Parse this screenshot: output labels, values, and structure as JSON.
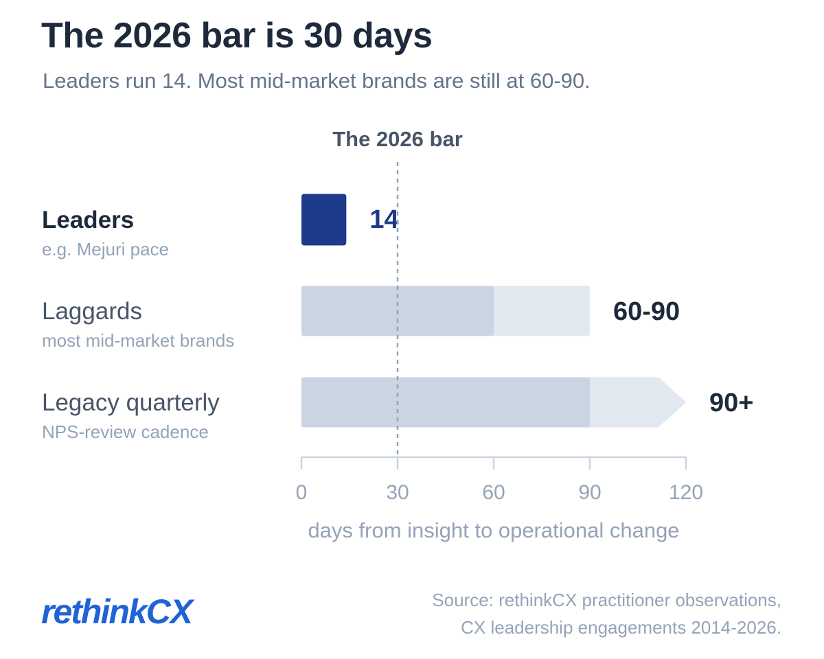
{
  "header": {
    "title": "The 2026 bar is 30 days",
    "subtitle": "Leaders run 14. Most mid-market brands are still at 60-90."
  },
  "chart_data": {
    "type": "bar",
    "orientation": "horizontal",
    "xlim": [
      0,
      120
    ],
    "x_ticks": [
      0,
      30,
      60,
      90,
      120
    ],
    "xlabel": "days from insight to operational change",
    "reference_line": {
      "value": 30,
      "label": "The 2026 bar"
    },
    "categories": [
      {
        "label": "Leaders",
        "sublabel": "e.g. Mejuri pace",
        "value_label": "14",
        "start": 0,
        "core_end": 14,
        "extended_end": 14,
        "open_ended": false,
        "highlight": true
      },
      {
        "label": "Laggards",
        "sublabel": "most mid-market brands",
        "value_label": "60-90",
        "start": 0,
        "core_end": 60,
        "extended_end": 90,
        "open_ended": false,
        "highlight": false
      },
      {
        "label": "Legacy quarterly",
        "sublabel": "NPS-review cadence",
        "value_label": "90+",
        "start": 0,
        "core_end": 90,
        "extended_end": 120,
        "open_ended": true,
        "highlight": false
      }
    ],
    "colors": {
      "highlight": "#1e3a8a",
      "core": "#cbd5e1",
      "extended": "#e2e8f0",
      "axis": "#cbd5e1",
      "tick_text": "#94a3b8",
      "reference_line": "#94a3b8",
      "reference_text": "#475569",
      "label_bold": "#1e2a3b",
      "label": "#475569",
      "sublabel": "#94a3b8",
      "value_dark": "#1e2a3b"
    }
  },
  "footer": {
    "logo_prefix": "rethink",
    "logo_suffix": "CX",
    "source_line1": "Source: rethinkCX practitioner observations,",
    "source_line2": "CX leadership engagements 2014-2026."
  }
}
